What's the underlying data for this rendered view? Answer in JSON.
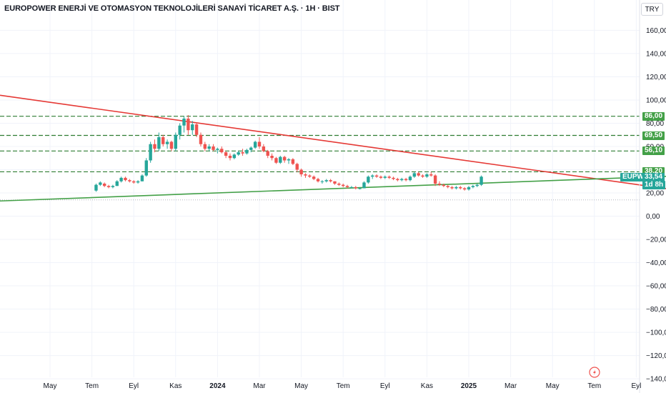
{
  "header": {
    "title": "EUROPOWER ENERJİ VE OTOMASYON TEKNOLOJİLERİ SANAYİ TİCARET A.Ş. · 1H · BIST",
    "currency": "TRY"
  },
  "colors": {
    "up": "#26a69a",
    "down": "#ef5350",
    "resistance_line": "#e53935",
    "support_line": "#43a047",
    "level_line": "#2e7d32",
    "label_bg": "#43a047",
    "last_bg": "#26a69a",
    "grid": "#f0f3fa"
  },
  "chart_data": {
    "type": "candlestick",
    "symbol": "EUPWR",
    "interval": "1H",
    "exchange": "BIST",
    "y_axis": {
      "ticks": [
        "160,00",
        "140,00",
        "120,00",
        "100,00",
        "80,00",
        "60,00",
        "40,00",
        "20,00",
        "0,00",
        "−20,00",
        "−40,00",
        "−60,00",
        "−80,00",
        "−100,00",
        "−120,00",
        "−140,00"
      ],
      "range": [
        -140,
        170
      ]
    },
    "x_axis": {
      "ticks": [
        {
          "label": "May",
          "bold": false
        },
        {
          "label": "Tem",
          "bold": false
        },
        {
          "label": "Eyl",
          "bold": false
        },
        {
          "label": "Kas",
          "bold": false
        },
        {
          "label": "2024",
          "bold": true
        },
        {
          "label": "Mar",
          "bold": false
        },
        {
          "label": "May",
          "bold": false
        },
        {
          "label": "Tem",
          "bold": false
        },
        {
          "label": "Eyl",
          "bold": false
        },
        {
          "label": "Kas",
          "bold": false
        },
        {
          "label": "2025",
          "bold": true
        },
        {
          "label": "Mar",
          "bold": false
        },
        {
          "label": "May",
          "bold": false
        },
        {
          "label": "Tem",
          "bold": false
        },
        {
          "label": "Eyl",
          "bold": false
        }
      ]
    },
    "horizontal_levels": [
      {
        "value": 86.0,
        "label": "86,00"
      },
      {
        "value": 69.5,
        "label": "69,50"
      },
      {
        "value": 56.1,
        "label": "56,10"
      },
      {
        "value": 38.2,
        "label": "38,20"
      }
    ],
    "dotted_level": 14,
    "last_price": {
      "symbol": "EUPWR",
      "value": "33,54",
      "countdown": "1d 8h",
      "numeric": 33.54
    },
    "trendlines": [
      {
        "name": "resistance",
        "from": {
          "month": 0,
          "price": 105
        },
        "to": {
          "month": 30.5,
          "price": 21
        }
      },
      {
        "name": "support",
        "from": {
          "month": 0,
          "price": 14
        },
        "to": {
          "month": 30.5,
          "price": 35
        }
      }
    ],
    "candles": [
      [
        2.2,
        22,
        28,
        21,
        27
      ],
      [
        2.4,
        27,
        30,
        26,
        29
      ],
      [
        2.6,
        28,
        29,
        25,
        26
      ],
      [
        2.8,
        26,
        27,
        24,
        25
      ],
      [
        3.0,
        25,
        27,
        24,
        26
      ],
      [
        3.2,
        26,
        31,
        26,
        30
      ],
      [
        3.4,
        30,
        34,
        29,
        33
      ],
      [
        3.6,
        33,
        34,
        30,
        31
      ],
      [
        3.8,
        31,
        32,
        29,
        30
      ],
      [
        4.0,
        30,
        31,
        28,
        29
      ],
      [
        4.2,
        29,
        31,
        28,
        30
      ],
      [
        4.4,
        30,
        36,
        30,
        35
      ],
      [
        4.6,
        35,
        50,
        34,
        48
      ],
      [
        4.8,
        48,
        64,
        46,
        62
      ],
      [
        5.0,
        62,
        66,
        55,
        58
      ],
      [
        5.2,
        58,
        72,
        56,
        68
      ],
      [
        5.4,
        68,
        70,
        60,
        62
      ],
      [
        5.6,
        62,
        66,
        58,
        64
      ],
      [
        5.8,
        64,
        65,
        56,
        58
      ],
      [
        6.0,
        58,
        72,
        56,
        70
      ],
      [
        6.2,
        70,
        80,
        66,
        78
      ],
      [
        6.4,
        78,
        86,
        72,
        84
      ],
      [
        6.6,
        84,
        87,
        70,
        74
      ],
      [
        6.8,
        74,
        82,
        70,
        79
      ],
      [
        7.0,
        79,
        80,
        68,
        70
      ],
      [
        7.2,
        70,
        72,
        60,
        62
      ],
      [
        7.4,
        62,
        64,
        56,
        58
      ],
      [
        7.6,
        58,
        62,
        56,
        60
      ],
      [
        7.8,
        60,
        62,
        56,
        57
      ],
      [
        8.0,
        57,
        59,
        54,
        58
      ],
      [
        8.2,
        58,
        60,
        54,
        55
      ],
      [
        8.4,
        55,
        56,
        50,
        52
      ],
      [
        8.6,
        52,
        54,
        48,
        50
      ],
      [
        8.8,
        50,
        54,
        49,
        53
      ],
      [
        9.0,
        53,
        56,
        52,
        55
      ],
      [
        9.2,
        55,
        58,
        52,
        54
      ],
      [
        9.4,
        54,
        58,
        53,
        57
      ],
      [
        9.6,
        57,
        60,
        55,
        59
      ],
      [
        9.8,
        59,
        65,
        58,
        64
      ],
      [
        10.0,
        64,
        68,
        58,
        60
      ],
      [
        10.2,
        60,
        62,
        55,
        56
      ],
      [
        10.4,
        56,
        57,
        50,
        52
      ],
      [
        10.6,
        52,
        54,
        48,
        50
      ],
      [
        10.8,
        50,
        51,
        45,
        46
      ],
      [
        11.0,
        46,
        52,
        45,
        51
      ],
      [
        11.2,
        51,
        52,
        46,
        48
      ],
      [
        11.4,
        48,
        50,
        45,
        49
      ],
      [
        11.6,
        49,
        50,
        44,
        45
      ],
      [
        11.8,
        45,
        46,
        38,
        40
      ],
      [
        12.0,
        40,
        41,
        34,
        36
      ],
      [
        12.2,
        36,
        37,
        33,
        35
      ],
      [
        12.4,
        35,
        36,
        33,
        34
      ],
      [
        12.6,
        34,
        35,
        31,
        32
      ],
      [
        12.8,
        32,
        33,
        29,
        30
      ],
      [
        13.0,
        30,
        31,
        28,
        30
      ],
      [
        13.2,
        30,
        32,
        29,
        31
      ],
      [
        13.4,
        31,
        32,
        29,
        30
      ],
      [
        13.6,
        30,
        30,
        27,
        28
      ],
      [
        13.8,
        28,
        29,
        26,
        27
      ],
      [
        14.0,
        27,
        28,
        25,
        26
      ],
      [
        14.2,
        26,
        27,
        24,
        25
      ],
      [
        14.4,
        25,
        26,
        24,
        25
      ],
      [
        14.6,
        25,
        26,
        23,
        24
      ],
      [
        14.8,
        24,
        25,
        23,
        24
      ],
      [
        15.0,
        24,
        30,
        24,
        29
      ],
      [
        15.2,
        29,
        35,
        28,
        34
      ],
      [
        15.4,
        34,
        36,
        32,
        35
      ],
      [
        15.6,
        35,
        36,
        33,
        34
      ],
      [
        15.8,
        34,
        35,
        32,
        33
      ],
      [
        16.0,
        33,
        35,
        32,
        34
      ],
      [
        16.2,
        34,
        35,
        32,
        33
      ],
      [
        16.4,
        33,
        34,
        31,
        32
      ],
      [
        16.6,
        32,
        33,
        30,
        31
      ],
      [
        16.8,
        31,
        33,
        30,
        32
      ],
      [
        17.0,
        32,
        33,
        30,
        31
      ],
      [
        17.2,
        31,
        35,
        30,
        34
      ],
      [
        17.4,
        34,
        38,
        33,
        37
      ],
      [
        17.6,
        37,
        38,
        34,
        35
      ],
      [
        17.8,
        35,
        36,
        33,
        34
      ],
      [
        18.0,
        34,
        37,
        33,
        36
      ],
      [
        18.2,
        36,
        38,
        34,
        35
      ],
      [
        18.4,
        35,
        36,
        26,
        28
      ],
      [
        18.6,
        28,
        30,
        26,
        27
      ],
      [
        18.8,
        27,
        28,
        25,
        26
      ],
      [
        19.0,
        26,
        27,
        24,
        25
      ],
      [
        19.2,
        25,
        26,
        23,
        24
      ],
      [
        19.4,
        24,
        26,
        23,
        25
      ],
      [
        19.6,
        25,
        26,
        23,
        24
      ],
      [
        19.8,
        24,
        25,
        22,
        23
      ],
      [
        20.0,
        23,
        26,
        22,
        25
      ],
      [
        20.2,
        25,
        27,
        24,
        26
      ],
      [
        20.4,
        26,
        28,
        25,
        27
      ],
      [
        20.6,
        27,
        35,
        26,
        34
      ]
    ]
  }
}
